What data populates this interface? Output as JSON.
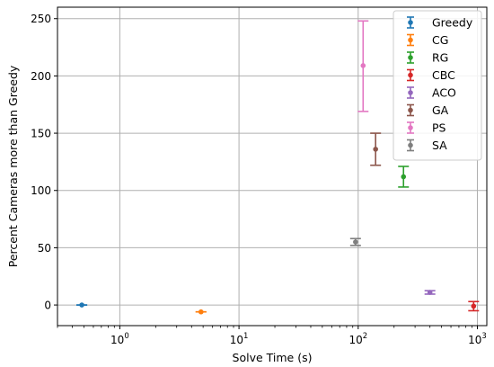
{
  "chart_data": {
    "type": "scatter",
    "xlabel": "Solve Time (s)",
    "ylabel": "Percent Cameras more than Greedy",
    "xscale": "log",
    "xlim": [
      0.3,
      1200
    ],
    "ylim": [
      -18,
      260
    ],
    "grid": true,
    "legend_position": "top-right",
    "x_ticks": [
      {
        "value": 1,
        "base": "10",
        "exp": "0"
      },
      {
        "value": 10,
        "base": "10",
        "exp": "1"
      },
      {
        "value": 100,
        "base": "10",
        "exp": "2"
      },
      {
        "value": 1000,
        "base": "10",
        "exp": "3"
      }
    ],
    "y_ticks": [
      0,
      50,
      100,
      150,
      200,
      250
    ],
    "series": [
      {
        "name": "Greedy",
        "color": "#1f77b4",
        "x": 0.48,
        "y": 0,
        "yerr_low": 0,
        "yerr_high": 0
      },
      {
        "name": "CG",
        "color": "#ff7f0e",
        "x": 4.8,
        "y": -6,
        "yerr_low": -6,
        "yerr_high": -6
      },
      {
        "name": "RG",
        "color": "#2ca02c",
        "x": 240,
        "y": 112,
        "yerr_low": 103,
        "yerr_high": 121
      },
      {
        "name": "CBC",
        "color": "#d62728",
        "x": 930,
        "y": -1,
        "yerr_low": -5,
        "yerr_high": 3
      },
      {
        "name": "ACO",
        "color": "#9467bd",
        "x": 400,
        "y": 11,
        "yerr_low": 9.5,
        "yerr_high": 12.5
      },
      {
        "name": "GA",
        "color": "#8c564b",
        "x": 140,
        "y": 136,
        "yerr_low": 122,
        "yerr_high": 150
      },
      {
        "name": "PS",
        "color": "#e377c2",
        "x": 110,
        "y": 209,
        "yerr_low": 169,
        "yerr_high": 248
      },
      {
        "name": "SA",
        "color": "#7f7f7f",
        "x": 95,
        "y": 55,
        "yerr_low": 52,
        "yerr_high": 58
      }
    ]
  }
}
